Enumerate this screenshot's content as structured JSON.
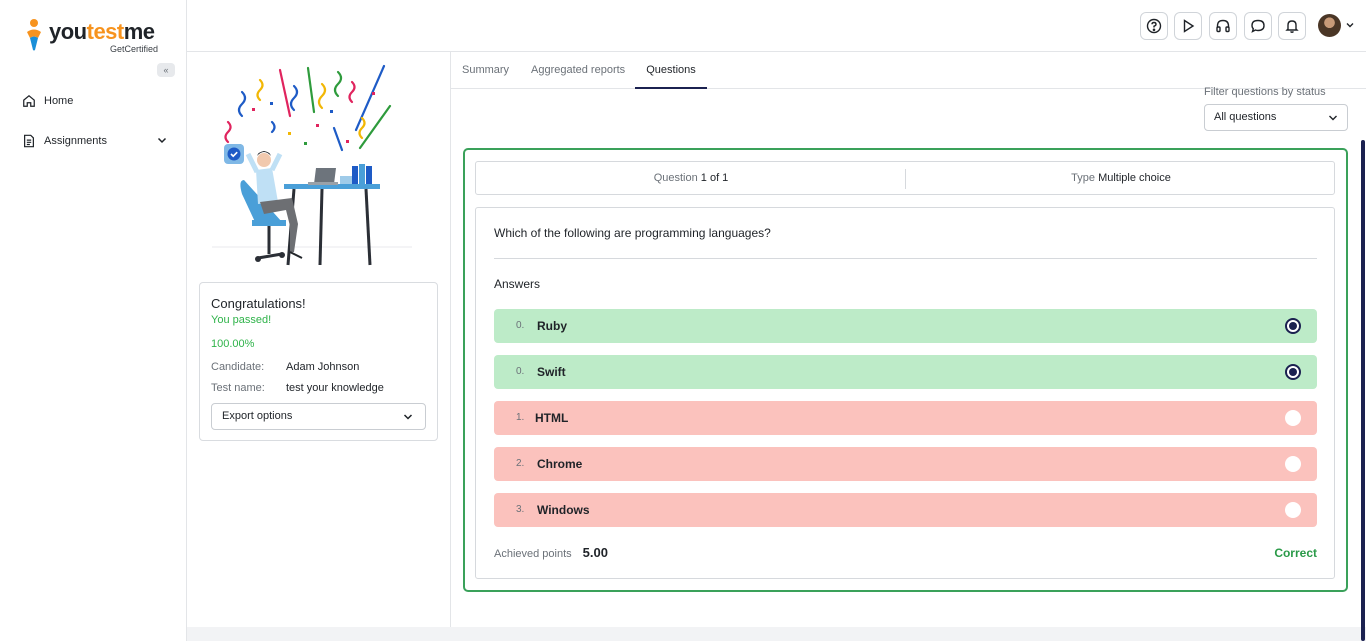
{
  "brand": {
    "name_part1": "you",
    "name_part2": "test",
    "name_part3": "me",
    "tagline": "GetCertified",
    "accent_color": "#f7931e"
  },
  "sidebar": {
    "collapse_label": "«",
    "items": [
      {
        "label": "Home",
        "icon": "home-icon"
      },
      {
        "label": "Assignments",
        "icon": "document-icon",
        "expandable": true
      }
    ]
  },
  "header": {
    "icons": [
      "help-icon",
      "play-icon",
      "headset-icon",
      "chat-icon",
      "bell-icon",
      "user-avatar"
    ]
  },
  "result": {
    "title": "Congratulations!",
    "status": "You passed!",
    "score": "100.00%",
    "candidate_label": "Candidate:",
    "candidate_value": "Adam Johnson",
    "test_label": "Test name:",
    "test_value": "test your knowledge",
    "export_label": "Export options",
    "status_color": "#2fb34a"
  },
  "tabs": [
    {
      "label": "Summary",
      "active": false
    },
    {
      "label": "Aggregated reports",
      "active": false
    },
    {
      "label": "Questions",
      "active": true
    }
  ],
  "filter": {
    "label": "Filter questions by status",
    "value": "All questions"
  },
  "question": {
    "counter_label": "Question",
    "counter_value": "1 of 1",
    "type_label": "Type",
    "type_value": "Multiple choice",
    "text": "Which of the following are programming languages?",
    "answers_title": "Answers",
    "answers": [
      {
        "num": "0.",
        "label": "Ruby",
        "correct": true,
        "selected": true
      },
      {
        "num": "0.",
        "label": "Swift",
        "correct": true,
        "selected": true
      },
      {
        "num": "1.",
        "label": "HTML",
        "correct": false,
        "selected": false
      },
      {
        "num": "2.",
        "label": "Chrome",
        "correct": false,
        "selected": false
      },
      {
        "num": "3.",
        "label": "Windows",
        "correct": false,
        "selected": false
      }
    ],
    "achieved_label": "Achieved points",
    "achieved_value": "5.00",
    "verdict": "Correct",
    "correct_color": "#bdebc8",
    "incorrect_color": "#fbc2bd",
    "border_color": "#3aa15a"
  }
}
